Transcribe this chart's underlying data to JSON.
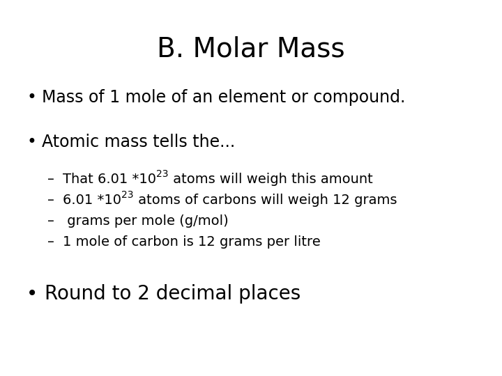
{
  "title": "B. Molar Mass",
  "background_color": "#ffffff",
  "text_color": "#000000",
  "title_fontsize": 28,
  "bullet_fontsize": 17,
  "sub_bullet_fontsize": 14,
  "last_bullet_fontsize": 20,
  "preferred_fonts": [
    "Chalkboard SE",
    "Chalkboard",
    "Neucha",
    "Comic Sans MS",
    "Patrick Hand",
    "Architects Daughter",
    "Humor Sans"
  ],
  "fallback_font": "DejaVu Sans",
  "bullet1": "Mass of 1 mole of an element or compound.",
  "bullet2": "Atomic mass tells the...",
  "sub1_pre": "That 6.01 *10",
  "sub1_sup": "23",
  "sub1_post": " atoms will weigh this amount",
  "sub2_pre": "6.01 *10",
  "sub2_sup": "23",
  "sub2_post": " atoms of carbons will weigh 12 grams",
  "sub3": " grams per mole (g/mol)",
  "sub4": "1 mole of carbon is 12 grams per litre",
  "bullet3": "Round to 2 decimal places"
}
